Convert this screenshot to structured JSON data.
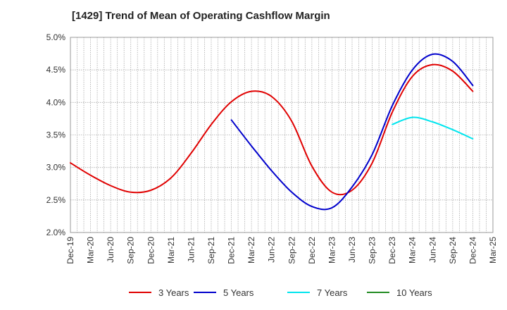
{
  "chart_data": {
    "type": "line",
    "title": "[1429]  Trend of Mean of Operating Cashflow Margin",
    "xlabel": "",
    "ylabel": "",
    "ylim": [
      2.0,
      5.0
    ],
    "y_ticks": [
      "2.0%",
      "2.5%",
      "3.0%",
      "3.5%",
      "4.0%",
      "4.5%",
      "5.0%"
    ],
    "x_ticks": [
      "Dec-19",
      "Mar-20",
      "Jun-20",
      "Sep-20",
      "Dec-20",
      "Mar-21",
      "Jun-21",
      "Sep-21",
      "Dec-21",
      "Mar-22",
      "Jun-22",
      "Sep-22",
      "Dec-22",
      "Mar-23",
      "Jun-23",
      "Sep-23",
      "Dec-23",
      "Mar-24",
      "Jun-24",
      "Sep-24",
      "Dec-24",
      "Mar-25"
    ],
    "x_start": "Dec-19",
    "x_end": "Mar-25",
    "grid": true,
    "legend_position": "bottom",
    "series": [
      {
        "name": "3 Years",
        "color": "#e00000",
        "points": [
          [
            "Dec-19",
            3.07
          ],
          [
            "Mar-20",
            2.88
          ],
          [
            "Jun-20",
            2.72
          ],
          [
            "Sep-20",
            2.62
          ],
          [
            "Dec-20",
            2.65
          ],
          [
            "Mar-21",
            2.84
          ],
          [
            "Jun-21",
            3.22
          ],
          [
            "Sep-21",
            3.66
          ],
          [
            "Dec-21",
            4.01
          ],
          [
            "Mar-22",
            4.17
          ],
          [
            "Jun-22",
            4.09
          ],
          [
            "Sep-22",
            3.71
          ],
          [
            "Dec-22",
            3.02
          ],
          [
            "Mar-23",
            2.62
          ],
          [
            "Jun-23",
            2.65
          ],
          [
            "Sep-23",
            3.07
          ],
          [
            "Dec-23",
            3.85
          ],
          [
            "Mar-24",
            4.4
          ],
          [
            "Jun-24",
            4.58
          ],
          [
            "Sep-24",
            4.48
          ],
          [
            "Dec-24",
            4.17
          ]
        ]
      },
      {
        "name": "5 Years",
        "color": "#0000cc",
        "points": [
          [
            "Dec-21",
            3.73
          ],
          [
            "Mar-22",
            3.33
          ],
          [
            "Jun-22",
            2.95
          ],
          [
            "Sep-22",
            2.62
          ],
          [
            "Dec-22",
            2.4
          ],
          [
            "Mar-23",
            2.38
          ],
          [
            "Jun-23",
            2.7
          ],
          [
            "Sep-23",
            3.2
          ],
          [
            "Dec-23",
            3.95
          ],
          [
            "Mar-24",
            4.5
          ],
          [
            "Jun-24",
            4.74
          ],
          [
            "Sep-24",
            4.63
          ],
          [
            "Dec-24",
            4.26
          ]
        ]
      },
      {
        "name": "7 Years",
        "color": "#00e5ee",
        "points": [
          [
            "Dec-23",
            3.66
          ],
          [
            "Mar-24",
            3.77
          ],
          [
            "Jun-24",
            3.7
          ],
          [
            "Sep-24",
            3.58
          ],
          [
            "Dec-24",
            3.44
          ]
        ]
      },
      {
        "name": "10 Years",
        "color": "#228b22",
        "points": []
      }
    ]
  }
}
